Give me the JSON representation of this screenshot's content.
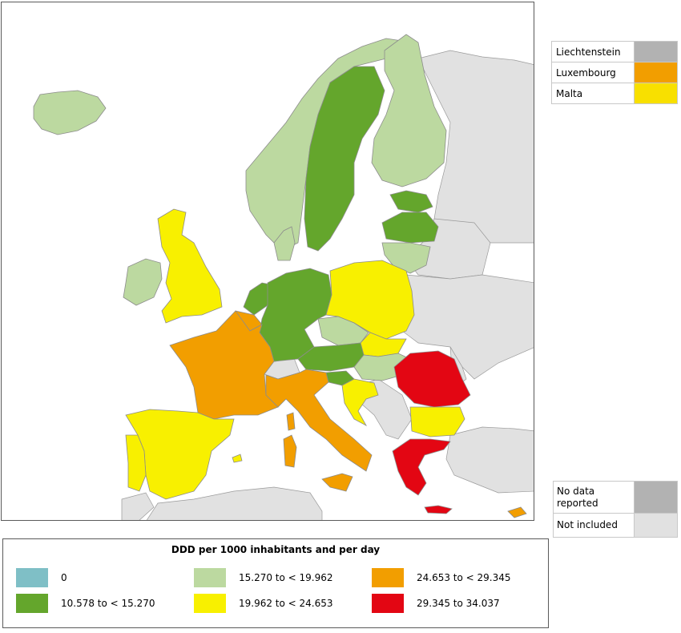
{
  "map": {
    "classes": {
      "c0": "#7fbfc6",
      "c1": "#64a62c",
      "c2": "#bcd9a0",
      "c3": "#f8f000",
      "c4": "#f29e00",
      "c5": "#e30613",
      "nodata": "#b2b2b2",
      "excluded": "#e1e1e1"
    },
    "country_classes": {
      "Iceland": "15.270 to < 19.962",
      "Norway": "15.270 to < 19.962",
      "Sweden": "10.578 to < 15.270",
      "Finland": "15.270 to < 19.962",
      "Estonia": "10.578 to < 15.270",
      "Latvia": "10.578 to < 15.270",
      "Lithuania": "15.270 to < 19.962",
      "Denmark": "15.270 to < 19.962",
      "United Kingdom": "19.962 to < 24.653",
      "Ireland": "15.270 to < 19.962",
      "Netherlands": "10.578 to < 15.270",
      "Germany": "10.578 to < 15.270",
      "Poland": "19.962 to < 24.653",
      "Czech Republic": "15.270 to < 19.962",
      "Slovakia": "19.962 to < 24.653",
      "Austria": "10.578 to < 15.270",
      "Hungary": "15.270 to < 19.962",
      "Slovenia": "10.578 to < 15.270",
      "Croatia": "19.962 to < 24.653",
      "Romania": "29.345 to 34.037",
      "Bulgaria": "19.962 to < 24.653",
      "Greece": "29.345 to 34.037",
      "Cyprus": "24.653 to < 29.345",
      "France": "24.653 to < 29.345",
      "Belgium": "24.653 to < 29.345",
      "Italy": "24.653 to < 29.345",
      "Spain": "19.962 to < 24.653",
      "Portugal": "19.962 to < 24.653"
    }
  },
  "small_countries": [
    {
      "label": "Liechtenstein",
      "color": "#b2b2b2"
    },
    {
      "label": "Luxembourg",
      "color": "#f29e00"
    },
    {
      "label": "Malta",
      "color": "#f8e000"
    }
  ],
  "status_legend": [
    {
      "label": "No data reported",
      "color": "#b2b2b2"
    },
    {
      "label": "Not included",
      "color": "#e1e1e1"
    }
  ],
  "legend": {
    "title": "DDD per 1000 inhabitants and per day",
    "items": [
      {
        "label": "0",
        "color": "#7fbfc6"
      },
      {
        "label": "10.578 to < 15.270",
        "color": "#64a62c"
      },
      {
        "label": "15.270 to < 19.962",
        "color": "#bcd9a0"
      },
      {
        "label": "19.962 to < 24.653",
        "color": "#f8f000"
      },
      {
        "label": "24.653 to < 29.345",
        "color": "#f29e00"
      },
      {
        "label": "29.345 to 34.037",
        "color": "#e30613"
      }
    ]
  }
}
